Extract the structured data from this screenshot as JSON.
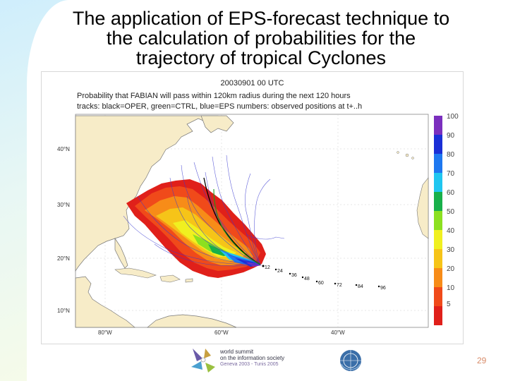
{
  "slide": {
    "title_lines": [
      "The application of EPS-forecast technique to",
      "the  calculation of probabilities for the",
      "trajectory of tropical Cyclones"
    ],
    "page_number": "29"
  },
  "map": {
    "date": "20030901 00 UTC",
    "header_line1": "Probability that FABIAN will pass within 120km radius during the next 120 hours",
    "header_line2": "tracks: black=OPER, green=CTRL, blue=EPS numbers: observed positions at t+..h",
    "lat_labels": [
      "40°N",
      "30°N",
      "20°N",
      "10°N"
    ],
    "lon_labels": [
      "80°W",
      "60°W",
      "40°W"
    ],
    "observed_positions": [
      "12",
      "24",
      "36",
      "48",
      "60",
      "72",
      "84",
      "96"
    ],
    "colorbar": {
      "labels": [
        "100",
        "90",
        "80",
        "70",
        "60",
        "50",
        "40",
        "30",
        "20",
        "10",
        "5"
      ],
      "colors": [
        "#7b2fbe",
        "#1a2fd6",
        "#1e78f0",
        "#20c6f0",
        "#18b04a",
        "#8ce020",
        "#f0f020",
        "#f6c418",
        "#f78c18",
        "#f04a1a",
        "#e0201a"
      ]
    }
  },
  "footer": {
    "wsis_line1": "world summit",
    "wsis_line2": "on the information society",
    "wsis_line3": "Geneva 2003 - Tunis 2005"
  }
}
